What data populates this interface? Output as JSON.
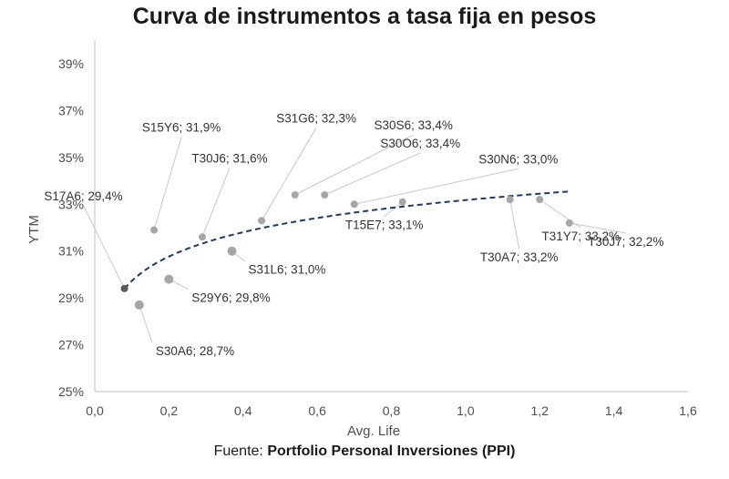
{
  "chart_data": {
    "type": "scatter",
    "title": "Curva de instrumentos a tasa fija en pesos",
    "xlabel": "Avg. Life",
    "ylabel": "YTM",
    "xlim": [
      0,
      1.6
    ],
    "ylim": [
      25,
      39
    ],
    "x_ticks": [
      "0,0",
      "0,2",
      "0,4",
      "0,6",
      "0,8",
      "1,0",
      "1,2",
      "1,4",
      "1,6"
    ],
    "y_ticks": [
      "25%",
      "27%",
      "29%",
      "31%",
      "33%",
      "35%",
      "37%",
      "39%"
    ],
    "grid": false,
    "points": [
      {
        "name": "S17A6",
        "x": 0.08,
        "y": 29.4,
        "label": "S17A6; 29,4%"
      },
      {
        "name": "S30A6",
        "x": 0.12,
        "y": 28.7,
        "label": "S30A6; 28,7%"
      },
      {
        "name": "S15Y6",
        "x": 0.16,
        "y": 31.9,
        "label": "S15Y6; 31,9%"
      },
      {
        "name": "S29Y6",
        "x": 0.2,
        "y": 29.8,
        "label": "S29Y6; 29,8%"
      },
      {
        "name": "T30J6",
        "x": 0.29,
        "y": 31.6,
        "label": "T30J6; 31,6%"
      },
      {
        "name": "S31L6",
        "x": 0.37,
        "y": 31.0,
        "label": "S31L6; 31,0%"
      },
      {
        "name": "S31G6",
        "x": 0.45,
        "y": 32.3,
        "label": "S31G6; 32,3%"
      },
      {
        "name": "S30S6",
        "x": 0.54,
        "y": 33.4,
        "label": "S30S6; 33,4%"
      },
      {
        "name": "S30O6",
        "x": 0.62,
        "y": 33.4,
        "label": "S30O6; 33,4%"
      },
      {
        "name": "S30N6",
        "x": 0.7,
        "y": 33.0,
        "label": "S30N6; 33,0%"
      },
      {
        "name": "T15E7",
        "x": 0.83,
        "y": 33.1,
        "label": "T15E7; 33,1%"
      },
      {
        "name": "T30A7",
        "x": 1.12,
        "y": 33.2,
        "label": "T30A7; 33,2%"
      },
      {
        "name": "T31Y7",
        "x": 1.2,
        "y": 33.2,
        "label": "T31Y7; 33,2%"
      },
      {
        "name": "T30J7",
        "x": 1.28,
        "y": 32.2,
        "label": "T30J7; 32,2%"
      }
    ],
    "trendline": {
      "type": "logarithmic",
      "style": "dashed",
      "x_range": [
        0.08,
        1.28
      ]
    },
    "colors": {
      "points": "#a6a6a6",
      "trendline": "#1f3864",
      "axis": "#bfbfbf"
    }
  },
  "source": {
    "prefix": "Fuente:",
    "name": "Portfolio Personal Inversiones (PPI)"
  }
}
